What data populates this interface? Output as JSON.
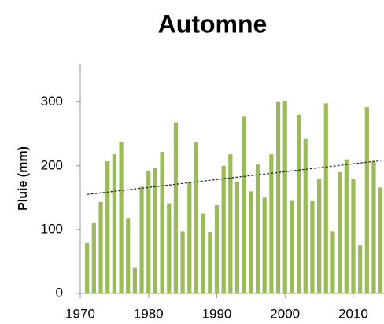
{
  "chart_data": {
    "type": "bar",
    "title": "Automne",
    "y_label": "Pluie (mm)",
    "x": [
      1971,
      1972,
      1973,
      1974,
      1975,
      1976,
      1977,
      1978,
      1979,
      1980,
      1981,
      1982,
      1983,
      1984,
      1985,
      1986,
      1987,
      1988,
      1989,
      1990,
      1991,
      1992,
      1993,
      1994,
      1995,
      1996,
      1997,
      1998,
      1999,
      2000,
      2001,
      2002,
      2003,
      2004,
      2005,
      2006,
      2007,
      2008,
      2009,
      2010,
      2011,
      2012,
      2013,
      2014
    ],
    "values": [
      79,
      111,
      143,
      207,
      218,
      238,
      118,
      40,
      167,
      192,
      197,
      222,
      141,
      268,
      97,
      175,
      237,
      125,
      96,
      138,
      200,
      218,
      175,
      277,
      160,
      202,
      150,
      218,
      300,
      301,
      146,
      280,
      242,
      145,
      179,
      298,
      97,
      190,
      210,
      179,
      75,
      292,
      206,
      166
    ],
    "color": "#9bbb59",
    "trend": {
      "x": [
        1971,
        2014
      ],
      "values": [
        155,
        208
      ],
      "color": "#222222"
    },
    "xlim": [
      1970,
      2014.5
    ],
    "xticks": [
      1970,
      1980,
      1990,
      2000,
      2010
    ],
    "ylim": [
      0,
      360
    ],
    "yticks": [
      0,
      100,
      200,
      300
    ]
  }
}
